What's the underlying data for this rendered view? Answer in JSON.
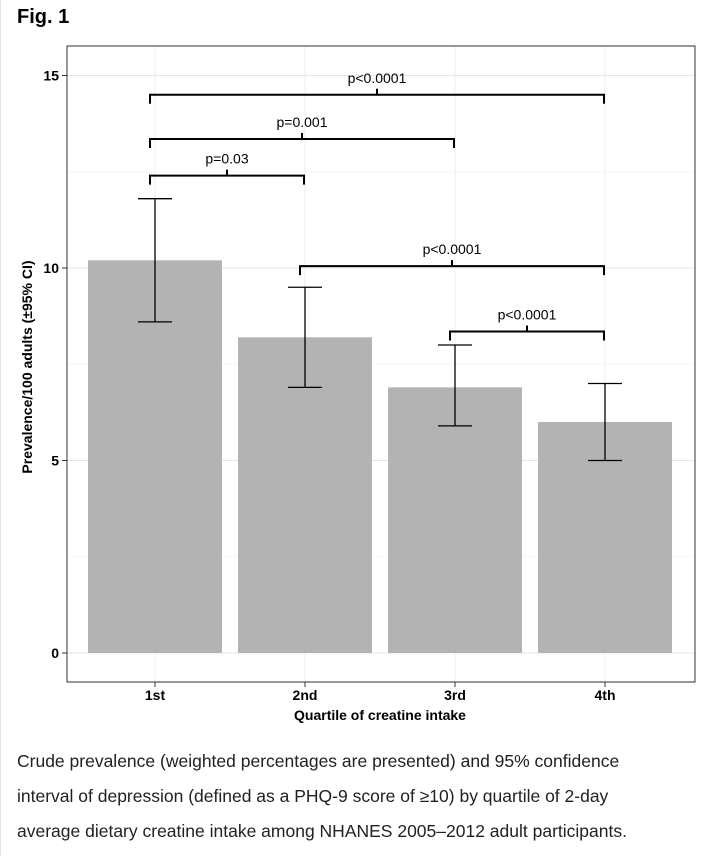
{
  "figure": {
    "label": "Fig. 1",
    "caption_lines": [
      "Crude prevalence (weighted percentages are presented) and 95% confidence",
      "interval of depression (defined as a PHQ-9 score of ≥10) by quartile of 2-day",
      "average dietary creatine intake among NHANES 2005–2012 adult participants."
    ]
  },
  "chart_data": {
    "type": "bar",
    "title": "",
    "xlabel": "Quartile of creatine intake",
    "ylabel": "Prevalence/100 adults (±95% CI)",
    "categories": [
      "1st",
      "2nd",
      "3rd",
      "4th"
    ],
    "values": [
      10.2,
      8.2,
      6.9,
      6.0
    ],
    "ci_lower": [
      8.6,
      6.9,
      5.9,
      5.0
    ],
    "ci_upper": [
      11.8,
      9.5,
      8.0,
      7.0
    ],
    "ylim": [
      0,
      15.5
    ],
    "yticks": [
      0,
      5,
      10,
      15
    ],
    "grid": true,
    "bar_color": "#b3b3b3",
    "significance_brackets": [
      {
        "from": "1st",
        "to": "4th",
        "level": 14.5,
        "label": "p<0.0001"
      },
      {
        "from": "1st",
        "to": "3rd",
        "level": 13.35,
        "label": "p=0.001"
      },
      {
        "from": "1st",
        "to": "2nd",
        "level": 12.4,
        "label": "p=0.03"
      },
      {
        "from": "2nd",
        "to": "4th",
        "level": 10.05,
        "label": "p<0.0001"
      },
      {
        "from": "3rd",
        "to": "4th",
        "level": 8.35,
        "label": "p<0.0001"
      }
    ]
  }
}
